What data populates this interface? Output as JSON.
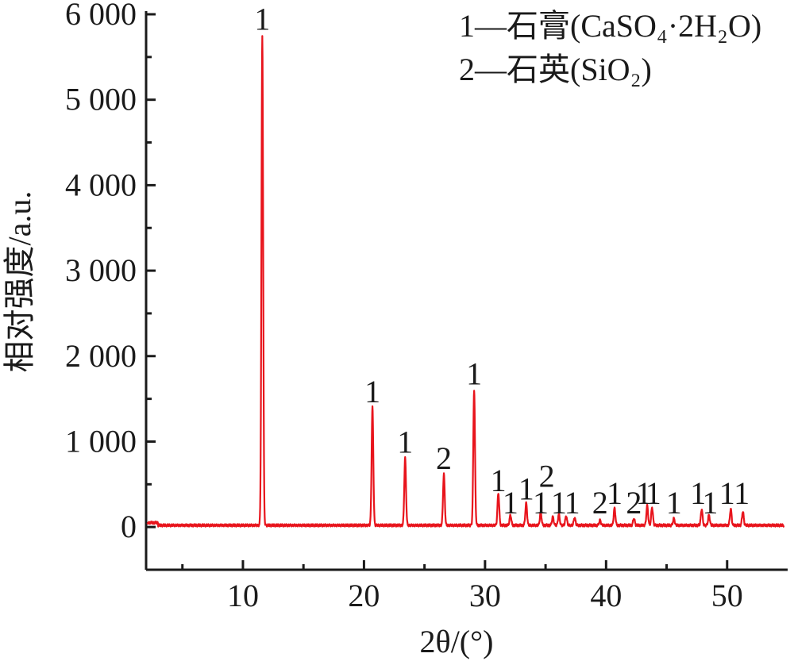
{
  "chart_data": {
    "type": "line",
    "title": "",
    "xlabel": "2θ/(°)",
    "ylabel": "相对强度/a.u.",
    "xlim": [
      2,
      55
    ],
    "ylim": [
      -500,
      6000
    ],
    "x_ticks": [
      10,
      20,
      30,
      40,
      50
    ],
    "y_ticks": [
      0,
      1000,
      2000,
      3000,
      4000,
      5000,
      6000
    ],
    "y_tick_labels": [
      "0",
      "1 000",
      "2 000",
      "3 000",
      "4 000",
      "5 000",
      "6 000"
    ],
    "grid": false,
    "legend_position": "top-right",
    "legend": [
      {
        "label": "1—石膏(CaSO₄·2H₂O)"
      },
      {
        "label": "2—石英(SiO₂)"
      }
    ],
    "series": [
      {
        "color": "#e8141c",
        "baseline": 20,
        "peaks": [
          {
            "x": 11.6,
            "y": 5720,
            "label": "1"
          },
          {
            "x": 20.7,
            "y": 1380,
            "label": "1"
          },
          {
            "x": 23.4,
            "y": 790,
            "label": "1"
          },
          {
            "x": 26.6,
            "y": 600,
            "label": "2"
          },
          {
            "x": 29.1,
            "y": 1590,
            "label": "1"
          },
          {
            "x": 31.1,
            "y": 380,
            "label": "1"
          },
          {
            "x": 32.1,
            "y": 120,
            "label": "1"
          },
          {
            "x": 33.4,
            "y": 260,
            "label": "1"
          },
          {
            "x": 34.6,
            "y": 150,
            "label": "1"
          },
          {
            "x": 35.6,
            "y": 100,
            "label": "2"
          },
          {
            "x": 36.1,
            "y": 130,
            "label": "1"
          },
          {
            "x": 36.7,
            "y": 110,
            "label": "1"
          },
          {
            "x": 37.4,
            "y": 90,
            "label": "1"
          },
          {
            "x": 39.5,
            "y": 60,
            "label": "2"
          },
          {
            "x": 40.7,
            "y": 200,
            "label": "1"
          },
          {
            "x": 42.3,
            "y": 80,
            "label": "2"
          },
          {
            "x": 43.4,
            "y": 230,
            "label": "1"
          },
          {
            "x": 43.8,
            "y": 210,
            "label": "1"
          },
          {
            "x": 45.6,
            "y": 80,
            "label": "1"
          },
          {
            "x": 47.9,
            "y": 190,
            "label": "1"
          },
          {
            "x": 48.5,
            "y": 120,
            "label": "1"
          },
          {
            "x": 50.3,
            "y": 190,
            "label": "1"
          },
          {
            "x": 51.3,
            "y": 160,
            "label": "1"
          }
        ]
      }
    ],
    "peak_labels": [
      {
        "x": 11.6,
        "text": "1",
        "y_text": 5820
      },
      {
        "x": 20.7,
        "text": "1",
        "y_text": 1460
      },
      {
        "x": 23.4,
        "text": "1",
        "y_text": 870
      },
      {
        "x": 26.6,
        "text": "2",
        "y_text": 680
      },
      {
        "x": 29.1,
        "text": "1",
        "y_text": 1670
      },
      {
        "x": 31.1,
        "text": "1",
        "y_text": 420
      },
      {
        "x": 32.1,
        "text": "1",
        "y_text": 160
      },
      {
        "x": 33.4,
        "text": "1",
        "y_text": 320
      },
      {
        "x": 34.6,
        "text": "1",
        "y_text": 160
      },
      {
        "x": 35.1,
        "text": "2",
        "y_text": 470
      },
      {
        "x": 36.1,
        "text": "1",
        "y_text": 160
      },
      {
        "x": 37.2,
        "text": "1",
        "y_text": 160
      },
      {
        "x": 39.5,
        "text": "2",
        "y_text": 160
      },
      {
        "x": 40.7,
        "text": "1",
        "y_text": 270
      },
      {
        "x": 42.3,
        "text": "2",
        "y_text": 160
      },
      {
        "x": 43.1,
        "text": "1",
        "y_text": 270
      },
      {
        "x": 43.9,
        "text": "1",
        "y_text": 270
      },
      {
        "x": 45.6,
        "text": "1",
        "y_text": 160
      },
      {
        "x": 47.6,
        "text": "1",
        "y_text": 270
      },
      {
        "x": 48.6,
        "text": "1",
        "y_text": 160
      },
      {
        "x": 50.0,
        "text": "1",
        "y_text": 270
      },
      {
        "x": 51.2,
        "text": "1",
        "y_text": 270
      }
    ]
  }
}
